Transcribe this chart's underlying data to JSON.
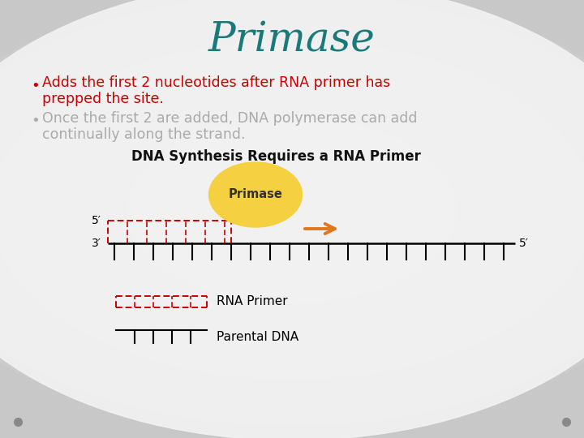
{
  "title": "Primase",
  "title_color": "#1a7a7a",
  "title_fontsize": 36,
  "bullet1_line1": "Adds the first 2 nucleotides after RNA primer has",
  "bullet1_line2": "prepped the site.",
  "bullet1_color": "#cc0000",
  "bullet2_line1": "Once the first 2 are added, DNA polymerase can add",
  "bullet2_line2": "continually along the strand.",
  "bullet2_color": "#aaaaaa",
  "diagram_title": "DNA Synthesis Requires a RNA Primer",
  "diagram_title_color": "#111111",
  "ellipse_color": "#f5d040",
  "ellipse_label": "Primase",
  "arrow_color": "#e07820",
  "rna_primer_color": "#cc0000",
  "legend_rna": "RNA Primer",
  "legend_dna": "Parental DNA",
  "label_5prime_left": "5′",
  "label_3prime": "3′",
  "label_5prime_right": "5′",
  "bg_outer": "#c8c8c8",
  "bg_inner": "#f2f2f2",
  "dot_color": "#888888"
}
